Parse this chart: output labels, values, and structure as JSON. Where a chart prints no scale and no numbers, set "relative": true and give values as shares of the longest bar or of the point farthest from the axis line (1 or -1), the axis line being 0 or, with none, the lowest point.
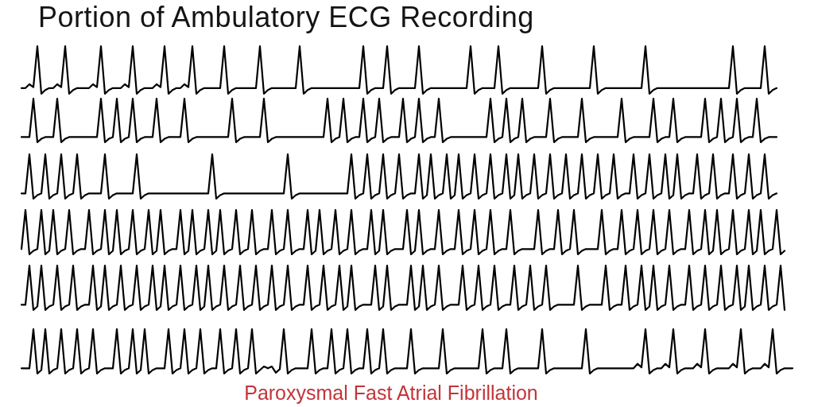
{
  "chart_data": [
    {
      "type": "line",
      "title": "Portion of Ambulatory ECG Recording",
      "relative": true,
      "color": "#000000",
      "categories": [
        null,
        null,
        null,
        null,
        null,
        null,
        null,
        null,
        null,
        null,
        null,
        null,
        null,
        null,
        null,
        null,
        null,
        null,
        null,
        null,
        null,
        null,
        null,
        null,
        null,
        null,
        null,
        null,
        null,
        null,
        null,
        null,
        null,
        null,
        null,
        null,
        null,
        null,
        null,
        null,
        null,
        null,
        null,
        null,
        null,
        null,
        null,
        null,
        null,
        null,
        null,
        null,
        null,
        null,
        null,
        null,
        null,
        null,
        null,
        null,
        null,
        null,
        null,
        null,
        null,
        null,
        null,
        null,
        null,
        null,
        null,
        null,
        null,
        null,
        null,
        null,
        null,
        null,
        null,
        null,
        null,
        null,
        null,
        null,
        null,
        null,
        null,
        null,
        null,
        null,
        null,
        null,
        null,
        null,
        null,
        null,
        null,
        null,
        null,
        null,
        null,
        null,
        null,
        null,
        null,
        null,
        null,
        null,
        null,
        null,
        null,
        null,
        null,
        null,
        null,
        null,
        null,
        null,
        null,
        null,
        null,
        null,
        null,
        null,
        null,
        null,
        null,
        null,
        null,
        null,
        null,
        null,
        null,
        null,
        null,
        null,
        null,
        null,
        null,
        null,
        null,
        null,
        null,
        null,
        null,
        null,
        null,
        null,
        null,
        null,
        null,
        null,
        null,
        null,
        null,
        null,
        null,
        null,
        null,
        null,
        null,
        null,
        null,
        null,
        null,
        null,
        null,
        null,
        null,
        null,
        null,
        null,
        null,
        null,
        null,
        null,
        null,
        null,
        null,
        null,
        null,
        null,
        null,
        null,
        null,
        null,
        null,
        null,
        null,
        null,
        null
      ],
      "values": [
        0.12,
        0.12,
        0.2,
        0.14,
        1,
        0,
        0.08,
        0.12,
        0.12,
        0.2,
        0.14,
        1,
        0,
        0.08,
        0.12,
        0.12,
        0.12,
        0.12,
        0.2,
        0.14,
        1,
        0,
        0.08,
        0.12,
        0.12,
        0.12,
        0.2,
        0.14,
        1,
        0,
        0.08,
        0.12,
        0.12,
        0.12,
        0.2,
        0.14,
        1,
        0,
        0.08,
        0.12,
        0.12,
        0.2,
        0.14,
        1,
        0,
        0.08,
        0.12,
        0.12,
        0.12,
        0.12,
        0.12,
        1,
        0,
        0.08,
        0.12,
        0.12,
        0.12,
        0.12,
        0.12,
        0.12,
        1,
        0,
        0.08,
        0.12,
        0.12,
        0.12,
        0.12,
        0.12,
        0.12,
        0.12,
        1,
        0,
        0.08,
        0.12,
        0.12,
        0.12,
        0.12,
        0.12,
        0.12,
        0.12,
        0.12,
        0.12,
        0.12,
        0.12,
        0.12,
        0.12,
        1,
        0,
        0.08,
        0.12,
        0.12,
        0.12,
        1,
        0,
        0.08,
        0.12,
        0.12,
        0.12,
        0.12,
        0.12,
        1,
        0,
        0.08,
        0.12,
        0.12,
        0.12,
        0.12,
        0.12,
        0.12,
        0.12,
        0.12,
        0.12,
        0.12,
        1,
        0,
        0.08,
        0.12,
        0.12,
        0.12,
        0.12,
        1,
        0,
        0.08,
        0.12,
        0.12,
        0.12,
        0.12,
        0.12,
        0.12,
        0.12,
        0.12,
        1,
        0,
        0.08,
        0.12,
        0.12,
        0.12,
        0.12,
        0.12,
        0.12,
        0.12,
        0.12,
        0.12,
        0.12,
        1,
        0,
        0.08,
        0.12,
        0.12,
        0.12,
        0.12,
        0.12,
        0.12,
        0.12,
        0.12,
        0.12,
        0.12,
        1,
        0,
        0.08,
        0.12,
        0.12,
        0.12,
        0.12,
        0.12,
        0.12,
        0.12,
        0.12,
        0.12,
        0.12,
        0.12,
        0.12,
        0.12,
        0.12,
        0.12,
        0.12,
        0.12,
        0.12,
        0.12,
        1,
        0,
        0.08,
        0.12,
        0.12,
        0.12,
        0.12,
        0.12,
        1,
        0,
        0.08,
        0.12
      ]
    },
    {
      "type": "line",
      "relative": true,
      "color": "#000000",
      "categories": [
        null,
        null,
        null,
        null,
        null,
        null,
        null,
        null,
        null,
        null,
        null,
        null,
        null,
        null,
        null,
        null,
        null,
        null,
        null,
        null,
        null,
        null,
        null,
        null,
        null,
        null,
        null,
        null,
        null,
        null,
        null,
        null,
        null,
        null,
        null,
        null,
        null,
        null,
        null,
        null,
        null,
        null,
        null,
        null,
        null,
        null,
        null,
        null,
        null,
        null,
        null,
        null,
        null,
        null,
        null,
        null,
        null,
        null,
        null,
        null,
        null,
        null,
        null,
        null,
        null,
        null,
        null,
        null,
        null,
        null,
        null,
        null,
        null,
        null,
        null,
        null,
        null,
        null,
        null,
        null,
        null,
        null,
        null,
        null,
        null,
        null,
        null,
        null,
        null,
        null,
        null,
        null,
        null,
        null,
        null,
        null,
        null,
        null,
        null,
        null,
        null,
        null,
        null,
        null,
        null,
        null,
        null,
        null,
        null,
        null,
        null,
        null,
        null,
        null,
        null,
        null,
        null,
        null,
        null,
        null,
        null,
        null,
        null,
        null,
        null,
        null,
        null,
        null,
        null,
        null,
        null,
        null,
        null,
        null,
        null,
        null,
        null,
        null,
        null,
        null,
        null,
        null,
        null,
        null,
        null,
        null,
        null,
        null,
        null,
        null,
        null,
        null,
        null,
        null,
        null,
        null,
        null,
        null,
        null,
        null,
        null,
        null,
        null,
        null,
        null,
        null,
        null,
        null,
        null,
        null,
        null,
        null,
        null,
        null,
        null,
        null,
        null,
        null,
        null,
        null,
        null,
        null,
        null,
        null,
        null,
        null,
        null,
        null,
        null,
        null,
        null
      ],
      "values": [
        0.12,
        0.12,
        0.12,
        1,
        0,
        0.08,
        0.12,
        0.12,
        0.12,
        1,
        0,
        0.08,
        0.12,
        0.12,
        0.12,
        0.12,
        0.12,
        0.12,
        0.12,
        0.12,
        1,
        0,
        0.08,
        0.12,
        1,
        0,
        0.08,
        0.12,
        1,
        0,
        0.08,
        0.12,
        0.12,
        0.12,
        1,
        0,
        0.08,
        0.12,
        0.12,
        0.12,
        0.12,
        1,
        0,
        0.08,
        0.12,
        0.12,
        0.12,
        0.12,
        0.12,
        0.12,
        0.12,
        0.12,
        0.12,
        1,
        0,
        0.08,
        0.12,
        0.12,
        0.12,
        0.12,
        0.12,
        1,
        0,
        0.08,
        0.12,
        0.12,
        0.12,
        0.12,
        0.12,
        0.12,
        0.12,
        0.12,
        0.12,
        0.12,
        0.12,
        0.12,
        0.12,
        1,
        0,
        0.08,
        0.12,
        1,
        0,
        0.08,
        0.12,
        0.12,
        1,
        0,
        0.08,
        0.12,
        1,
        0,
        0.08,
        0.12,
        0.12,
        0.12,
        1,
        0,
        0.08,
        0.12,
        1,
        0,
        0.08,
        0.12,
        0.12,
        1,
        0,
        0.08,
        0.12,
        0.12,
        0.12,
        0.12,
        0.12,
        0.12,
        0.12,
        0.12,
        0.12,
        0.12,
        1,
        0,
        0.08,
        0.12,
        1,
        0,
        0.08,
        0.12,
        1,
        0,
        0.08,
        0.12,
        0.12,
        0.12,
        0.12,
        1,
        0,
        0.08,
        0.12,
        0.12,
        0.12,
        0.12,
        0.12,
        1,
        0,
        0.08,
        0.12,
        0.12,
        0.12,
        0.12,
        0.12,
        0.12,
        0.12,
        1,
        0,
        0.08,
        0.12,
        0.12,
        0.12,
        0.12,
        0.12,
        1,
        0,
        0.08,
        0.12,
        0.12,
        1,
        0,
        0.08,
        0.12,
        0.12,
        0.12,
        0.12,
        0.12,
        1,
        0,
        0.08,
        0.12,
        1,
        0,
        0.08,
        0.12,
        1,
        0,
        0.08,
        0.12,
        0.12,
        1,
        0,
        0.08,
        0.12,
        0.12,
        0.12
      ]
    },
    {
      "type": "line",
      "relative": true,
      "color": "#000000",
      "categories": [
        null,
        null,
        null,
        null,
        null,
        null,
        null,
        null,
        null,
        null,
        null,
        null,
        null,
        null,
        null,
        null,
        null,
        null,
        null,
        null,
        null,
        null,
        null,
        null,
        null,
        null,
        null,
        null,
        null,
        null,
        null,
        null,
        null,
        null,
        null,
        null,
        null,
        null,
        null,
        null,
        null,
        null,
        null,
        null,
        null,
        null,
        null,
        null,
        null,
        null,
        null,
        null,
        null,
        null,
        null,
        null,
        null,
        null,
        null,
        null,
        null,
        null,
        null,
        null,
        null,
        null,
        null,
        null,
        null,
        null,
        null,
        null,
        null,
        null,
        null,
        null,
        null,
        null,
        null,
        null,
        null,
        null,
        null,
        null,
        null,
        null,
        null,
        null,
        null,
        null,
        null,
        null,
        null,
        null,
        null,
        null,
        null,
        null,
        null,
        null,
        null,
        null,
        null,
        null,
        null,
        null,
        null,
        null,
        null,
        null,
        null,
        null,
        null,
        null,
        null,
        null,
        null,
        null,
        null,
        null,
        null,
        null,
        null,
        null,
        null,
        null,
        null,
        null,
        null,
        null,
        null,
        null,
        null,
        null,
        null,
        null,
        null,
        null,
        null,
        null,
        null,
        null,
        null,
        null,
        null,
        null,
        null,
        null,
        null,
        null,
        null,
        null,
        null,
        null,
        null,
        null,
        null,
        null,
        null,
        null,
        null,
        null,
        null,
        null,
        null,
        null,
        null,
        null,
        null,
        null,
        null,
        null,
        null,
        null,
        null,
        null,
        null,
        null,
        null,
        null,
        null,
        null,
        null,
        null,
        null,
        null,
        null,
        null,
        null,
        null,
        null
      ],
      "values": [
        0.12,
        0.12,
        1,
        0,
        0.08,
        0.12,
        1,
        0,
        0.08,
        0.12,
        1,
        0,
        0.08,
        0.12,
        1,
        0,
        0.08,
        0.12,
        0.12,
        0.12,
        0.12,
        1,
        0,
        0.08,
        0.12,
        0.12,
        0.12,
        0.12,
        0.12,
        1,
        0,
        0.08,
        0.12,
        0.12,
        0.12,
        0.12,
        0.12,
        0.12,
        0.12,
        0.12,
        0.12,
        0.12,
        0.12,
        0.12,
        0.12,
        0.12,
        0.12,
        0.12,
        1,
        0,
        0.08,
        0.12,
        0.12,
        0.12,
        0.12,
        0.12,
        0.12,
        0.12,
        0.12,
        0.12,
        0.12,
        0.12,
        0.12,
        0.12,
        0.12,
        0.12,
        0.12,
        1,
        0,
        0.08,
        0.12,
        0.12,
        0.12,
        0.12,
        0.12,
        0.12,
        0.12,
        0.12,
        0.12,
        0.12,
        0.12,
        0.12,
        0.12,
        1,
        0,
        0.08,
        0.12,
        1,
        0,
        0.08,
        0.12,
        1,
        0,
        0.08,
        0.12,
        1,
        0,
        0.08,
        0.12,
        0.12,
        1,
        0,
        0.08,
        1,
        0,
        0.08,
        0.12,
        1,
        0,
        0.08,
        1,
        0,
        0.08,
        0.12,
        1,
        0,
        0.08,
        0.12,
        1,
        0,
        0.08,
        0.12,
        1,
        0,
        0.08,
        1,
        0,
        0.08,
        0.12,
        1,
        0,
        0.08,
        0.12,
        1,
        0,
        0.08,
        0.12,
        1,
        0,
        0.08,
        0.12,
        1,
        0,
        0.08,
        0.12,
        1,
        0,
        0.08,
        0.12,
        1,
        0,
        0.08,
        0.12,
        0.12,
        1,
        0,
        0.08,
        0.12,
        1,
        0,
        0.08,
        0.12,
        1,
        0,
        0.08,
        1,
        0,
        0.08,
        0.12,
        0.12,
        1,
        0,
        0.08,
        0.12,
        1,
        0,
        0.08,
        0.12,
        0.12,
        1,
        0,
        0.08,
        0.12,
        1,
        0,
        0.08,
        0.12,
        1,
        0,
        0.08,
        0.12
      ]
    },
    {
      "type": "line",
      "relative": true,
      "color": "#000000",
      "categories": [
        null,
        null,
        null,
        null,
        null,
        null,
        null,
        null,
        null,
        null,
        null,
        null,
        null,
        null,
        null,
        null,
        null,
        null,
        null,
        null,
        null,
        null,
        null,
        null,
        null,
        null,
        null,
        null,
        null,
        null,
        null,
        null,
        null,
        null,
        null,
        null,
        null,
        null,
        null,
        null,
        null,
        null,
        null,
        null,
        null,
        null,
        null,
        null,
        null,
        null,
        null,
        null,
        null,
        null,
        null,
        null,
        null,
        null,
        null,
        null,
        null,
        null,
        null,
        null,
        null,
        null,
        null,
        null,
        null,
        null,
        null,
        null,
        null,
        null,
        null,
        null,
        null,
        null,
        null,
        null,
        null,
        null,
        null,
        null,
        null,
        null,
        null,
        null,
        null,
        null,
        null,
        null,
        null,
        null,
        null,
        null,
        null,
        null,
        null,
        null,
        null,
        null,
        null,
        null,
        null,
        null,
        null,
        null,
        null,
        null,
        null,
        null,
        null,
        null,
        null,
        null,
        null,
        null,
        null,
        null,
        null,
        null,
        null,
        null,
        null,
        null,
        null,
        null,
        null,
        null,
        null,
        null,
        null,
        null,
        null,
        null,
        null,
        null,
        null,
        null,
        null,
        null,
        null,
        null,
        null,
        null,
        null,
        null,
        null,
        null,
        null,
        null,
        null,
        null,
        null,
        null,
        null,
        null,
        null,
        null,
        null,
        null,
        null,
        null,
        null,
        null,
        null,
        null,
        null,
        null,
        null,
        null,
        null,
        null,
        null,
        null,
        null,
        null,
        null,
        null,
        null,
        null,
        null,
        null,
        null,
        null,
        null,
        null,
        null,
        null,
        null,
        null,
        null
      ],
      "values": [
        0.12,
        1,
        0,
        0.08,
        0.12,
        1,
        0,
        0.08,
        1,
        0,
        0.08,
        0.12,
        1,
        0,
        0.08,
        0.12,
        0.12,
        1,
        0,
        0.08,
        0.12,
        1,
        0,
        0.08,
        1,
        0,
        0.08,
        0.12,
        1,
        0,
        0.08,
        0.12,
        1,
        0,
        0.08,
        1,
        0,
        0.08,
        0.12,
        0.12,
        1,
        0,
        0.08,
        1,
        0,
        0.08,
        0.12,
        1,
        0,
        0.08,
        1,
        0,
        0.08,
        0.12,
        1,
        0,
        0.08,
        0.12,
        1,
        0,
        0.08,
        0.12,
        0.12,
        1,
        0,
        0.08,
        0.12,
        1,
        0,
        0.08,
        0.12,
        0.12,
        1,
        0,
        0.08,
        1,
        0,
        0.08,
        0.12,
        1,
        0,
        0.08,
        0.12,
        1,
        0,
        0.08,
        0.12,
        0.12,
        1,
        0,
        0.08,
        1,
        0,
        0.08,
        0.12,
        0.12,
        0.12,
        1,
        0,
        0.08,
        1,
        0,
        0.08,
        0.12,
        0.12,
        1,
        0,
        0.08,
        0.12,
        0.12,
        1,
        0,
        0.08,
        0.12,
        1,
        0,
        0.08,
        0.12,
        1,
        0,
        0.08,
        0.12,
        0.12,
        1,
        0,
        0.08,
        0.12,
        0.12,
        0.12,
        0.12,
        1,
        0,
        0.08,
        0.12,
        0.12,
        1,
        0,
        0.08,
        0.12,
        1,
        0,
        0.08,
        0.12,
        0.12,
        0.12,
        0.12,
        1,
        0,
        0.08,
        0.12,
        0.12,
        1,
        0,
        0.08,
        0.12,
        1,
        0,
        0.08,
        0.12,
        1,
        0,
        0.08,
        0.12,
        1,
        0,
        0.08,
        0.12,
        0.12,
        1,
        0,
        0.08,
        0.12,
        1,
        0,
        0.08,
        1,
        0,
        0.08,
        0.12,
        1,
        0,
        0.08,
        0.12,
        1,
        0,
        0.08,
        1,
        0,
        0.08,
        0.12,
        1,
        0,
        0.08
      ]
    },
    {
      "type": "line",
      "relative": true,
      "color": "#000000",
      "categories": [
        null,
        null,
        null,
        null,
        null,
        null,
        null,
        null,
        null,
        null,
        null,
        null,
        null,
        null,
        null,
        null,
        null,
        null,
        null,
        null,
        null,
        null,
        null,
        null,
        null,
        null,
        null,
        null,
        null,
        null,
        null,
        null,
        null,
        null,
        null,
        null,
        null,
        null,
        null,
        null,
        null,
        null,
        null,
        null,
        null,
        null,
        null,
        null,
        null,
        null,
        null,
        null,
        null,
        null,
        null,
        null,
        null,
        null,
        null,
        null,
        null,
        null,
        null,
        null,
        null,
        null,
        null,
        null,
        null,
        null,
        null,
        null,
        null,
        null,
        null,
        null,
        null,
        null,
        null,
        null,
        null,
        null,
        null,
        null,
        null,
        null,
        null,
        null,
        null,
        null,
        null,
        null,
        null,
        null,
        null,
        null,
        null,
        null,
        null,
        null,
        null,
        null,
        null,
        null,
        null,
        null,
        null,
        null,
        null,
        null,
        null,
        null,
        null,
        null,
        null,
        null,
        null,
        null,
        null,
        null,
        null,
        null,
        null,
        null,
        null,
        null,
        null,
        null,
        null,
        null,
        null,
        null,
        null,
        null,
        null,
        null,
        null,
        null,
        null,
        null,
        null,
        null,
        null,
        null,
        null,
        null,
        null,
        null,
        null,
        null,
        null,
        null,
        null,
        null,
        null,
        null,
        null,
        null,
        null,
        null,
        null,
        null,
        null,
        null,
        null,
        null,
        null,
        null,
        null,
        null,
        null,
        null,
        null,
        null,
        null,
        null,
        null,
        null,
        null,
        null,
        null,
        null,
        null,
        null,
        null,
        null,
        null,
        null,
        null,
        null,
        null,
        null,
        null
      ],
      "values": [
        0.12,
        0.12,
        1,
        0,
        0.08,
        1,
        0,
        0.08,
        0.12,
        1,
        0,
        0.08,
        0.12,
        1,
        0,
        0.08,
        0.12,
        0.12,
        1,
        0,
        0.08,
        1,
        0,
        0.08,
        0.12,
        1,
        0,
        0.08,
        0.12,
        1,
        0,
        0.08,
        0.12,
        1,
        0,
        0.08,
        1,
        0,
        0.08,
        0.12,
        1,
        0,
        0.08,
        0.12,
        1,
        0,
        0.08,
        1,
        0,
        0.08,
        0.12,
        1,
        0,
        0.08,
        0.12,
        1,
        0,
        0.08,
        0.12,
        1,
        0,
        0.08,
        0.12,
        1,
        0,
        0.08,
        0.12,
        1,
        0,
        0.08,
        0.12,
        0.12,
        1,
        0,
        0.08,
        0.12,
        1,
        0,
        0.08,
        0.12,
        1,
        0,
        0.08,
        1,
        0,
        0.08,
        0.12,
        0.12,
        0.12,
        1,
        0,
        0.08,
        1,
        0,
        0.08,
        0.12,
        0.12,
        0.12,
        1,
        0,
        0.08,
        1,
        0,
        0.08,
        0.12,
        1,
        0,
        0.08,
        0.12,
        0.12,
        0.12,
        1,
        0,
        0.08,
        0.12,
        1,
        0,
        0.08,
        0.12,
        1,
        0,
        0.08,
        0.12,
        0.12,
        1,
        0,
        0.08,
        0.12,
        1,
        0,
        0.08,
        0.12,
        1,
        0,
        0.08,
        0.12,
        0.12,
        0.12,
        0.12,
        0.12,
        1,
        0,
        0.08,
        0.12,
        0.12,
        0.12,
        0.12,
        1,
        0,
        0.08,
        0.12,
        0.12,
        1,
        0,
        0.08,
        0.12,
        1,
        0,
        0.08,
        1,
        0,
        0.08,
        0.12,
        1,
        0,
        0.08,
        0.12,
        0.12,
        1,
        0,
        0.08,
        0.12,
        1,
        0,
        0.08,
        0.12,
        1,
        0,
        0.08,
        0.12,
        1,
        0,
        0.08,
        1,
        0,
        0.08,
        0.12,
        1,
        0,
        0.08,
        0.12,
        1,
        0
      ]
    },
    {
      "type": "line",
      "relative": true,
      "color": "#000000",
      "annotations": [
        "Paroxysmal Fast Atrial Fibrillation"
      ],
      "categories": [
        null,
        null,
        null,
        null,
        null,
        null,
        null,
        null,
        null,
        null,
        null,
        null,
        null,
        null,
        null,
        null,
        null,
        null,
        null,
        null,
        null,
        null,
        null,
        null,
        null,
        null,
        null,
        null,
        null,
        null,
        null,
        null,
        null,
        null,
        null,
        null,
        null,
        null,
        null,
        null,
        null,
        null,
        null,
        null,
        null,
        null,
        null,
        null,
        null,
        null,
        null,
        null,
        null,
        null,
        null,
        null,
        null,
        null,
        null,
        null,
        null,
        null,
        null,
        null,
        null,
        null,
        null,
        null,
        null,
        null,
        null,
        null,
        null,
        null,
        null,
        null,
        null,
        null,
        null,
        null,
        null,
        null,
        null,
        null,
        null,
        null,
        null,
        null,
        null,
        null,
        null,
        null,
        null,
        null,
        null,
        null,
        null,
        null,
        null,
        null,
        null,
        null,
        null,
        null,
        null,
        null,
        null,
        null,
        null,
        null,
        null,
        null,
        null,
        null,
        null,
        null,
        null,
        null,
        null,
        null,
        null,
        null,
        null,
        null,
        null,
        null,
        null,
        null,
        null,
        null,
        null,
        null,
        null,
        null,
        null,
        null,
        null,
        null,
        null,
        null,
        null,
        null,
        null,
        null,
        null,
        null,
        null,
        null,
        null,
        null,
        null,
        null,
        null,
        null,
        null,
        null,
        null,
        null,
        null,
        null,
        null,
        null,
        null,
        null,
        null,
        null,
        null,
        null,
        null,
        null,
        null,
        null,
        null,
        null,
        null,
        null,
        null,
        null,
        null,
        null,
        null,
        null,
        null,
        null,
        null,
        null,
        null,
        null,
        null,
        null,
        null,
        null,
        null,
        null,
        null
      ],
      "values": [
        0.12,
        0.12,
        0.12,
        1,
        0,
        0.08,
        1,
        0,
        0.08,
        0.12,
        1,
        0,
        0.08,
        0.12,
        1,
        0,
        0.08,
        0.12,
        1,
        0,
        0.08,
        0.12,
        0.12,
        0.12,
        1,
        0,
        0.08,
        0.12,
        1,
        0,
        0.08,
        1,
        0,
        0.08,
        0.12,
        0.12,
        0.12,
        1,
        0,
        0.08,
        0.12,
        1,
        0,
        0.08,
        0.12,
        1,
        0,
        0.08,
        0.12,
        0.12,
        1,
        0,
        0.08,
        0.12,
        1,
        0,
        0.08,
        0.12,
        1,
        0,
        0.08,
        0.16,
        0.12,
        0.16,
        0.02,
        0.1,
        1,
        0,
        0.08,
        0.12,
        0.12,
        0.12,
        0.12,
        1,
        0,
        0.08,
        0.12,
        0.12,
        1,
        0,
        0.08,
        0.12,
        1,
        0,
        0.08,
        0.12,
        0.12,
        1,
        0,
        0.08,
        0.12,
        1,
        0,
        0.08,
        0.12,
        0.12,
        0.12,
        0.12,
        1,
        0,
        0.08,
        0.12,
        0.12,
        0.12,
        0.12,
        0.12,
        1,
        0,
        0.08,
        0.12,
        0.12,
        0.12,
        0.12,
        0.12,
        0.12,
        0.12,
        1,
        0,
        0.08,
        0.12,
        0.12,
        0.12,
        1,
        0,
        0.08,
        0.12,
        0.12,
        0.12,
        0.12,
        0.12,
        0.12,
        1,
        0,
        0.08,
        0.12,
        0.12,
        0.12,
        0.12,
        0.12,
        0.12,
        0.12,
        0.12,
        1,
        0,
        0.08,
        0.12,
        0.12,
        0.12,
        0.12,
        0.12,
        0.12,
        0.12,
        0.12,
        0.12,
        0.12,
        0.22,
        0.14,
        1,
        0,
        0.08,
        0.12,
        0.12,
        0.22,
        0.14,
        1,
        0,
        0.08,
        0.12,
        0.12,
        0.12,
        0.22,
        0.14,
        1,
        0,
        0.08,
        0.12,
        0.12,
        0.12,
        0.12,
        0.22,
        0.14,
        1,
        0,
        0.08,
        0.12,
        0.12,
        0.12,
        0.22,
        0.14,
        1,
        0,
        0.08,
        0.12,
        0.12,
        0.12
      ]
    }
  ]
}
